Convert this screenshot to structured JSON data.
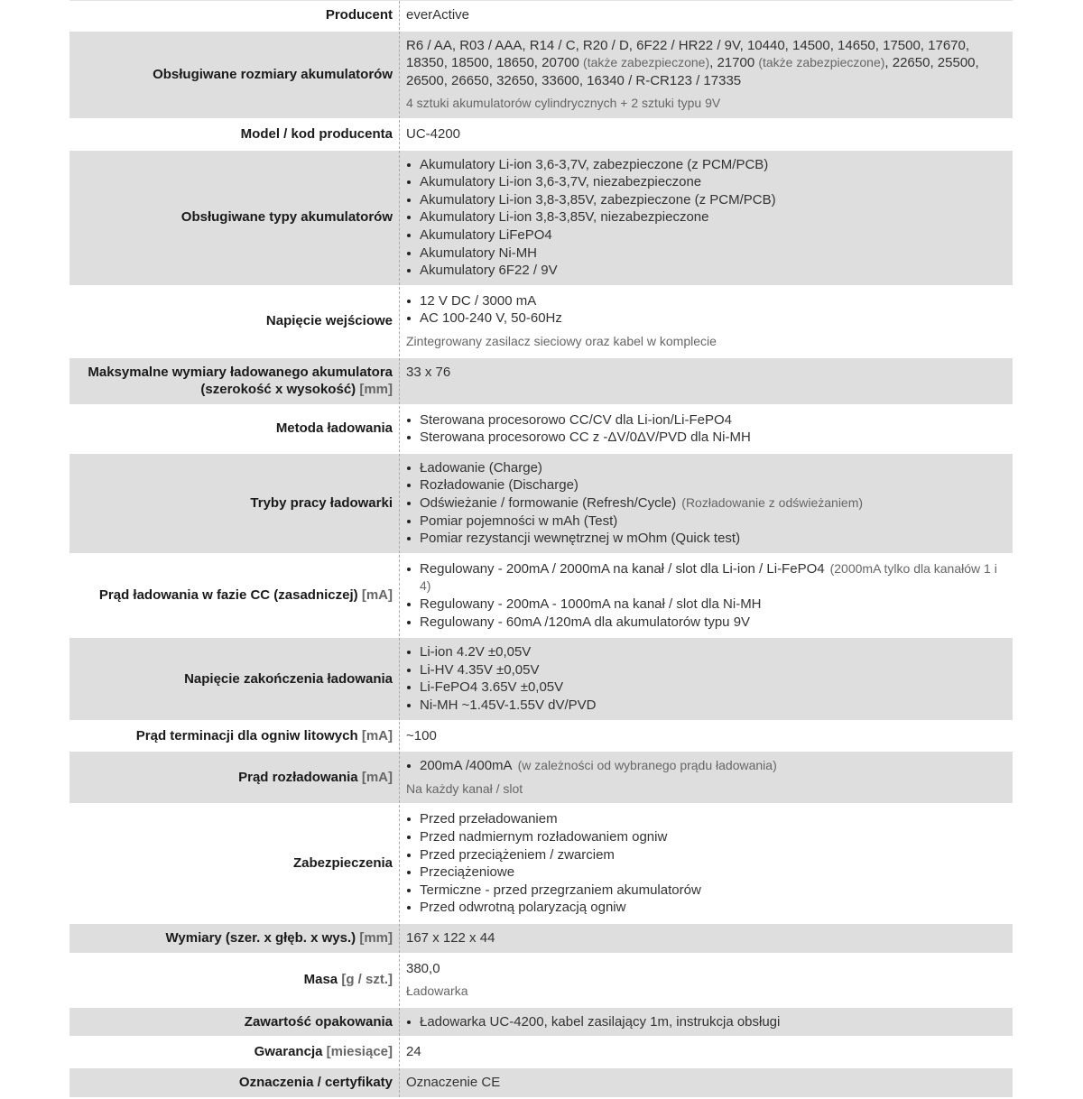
{
  "rows": [
    {
      "label": "Producent",
      "segments": [
        {
          "text": "everActive"
        }
      ]
    },
    {
      "label": "Obsługiwane rozmiary akumulatorów",
      "segments": [
        {
          "text": "R6 / AA, R03 / AAA, R14 / C, R20 / D, 6F22 / HR22 / 9V, 10440, 14500, 14650, 17500, 17670, 18350, 18500, 18650, 20700 "
        },
        {
          "text": " (także zabezpieczone)",
          "muted": true
        },
        {
          "text": ", 21700 "
        },
        {
          "text": " (także zabezpieczone)",
          "muted": true
        },
        {
          "text": ", 22650, 25500, 26500, 26650, 32650, 33600, 16340 / R-CR123 / 17335"
        }
      ],
      "subnote": "4 sztuki akumulatorów cylindrycznych + 2 sztuki typu 9V"
    },
    {
      "label": "Model / kod producenta",
      "segments": [
        {
          "text": "UC-4200"
        }
      ]
    },
    {
      "label": "Obsługiwane typy akumulatorów",
      "items": [
        {
          "text": "Akumulatory Li-ion 3,6-3,7V, zabezpieczone (z PCM/PCB)"
        },
        {
          "text": "Akumulatory Li-ion 3,6-3,7V, niezabezpieczone"
        },
        {
          "text": "Akumulatory Li-ion 3,8-3,85V, zabezpieczone (z PCM/PCB)"
        },
        {
          "text": "Akumulatory Li-ion 3,8-3,85V, niezabezpieczone"
        },
        {
          "text": "Akumulatory LiFePO4"
        },
        {
          "text": "Akumulatory Ni-MH"
        },
        {
          "text": "Akumulatory 6F22 / 9V"
        }
      ]
    },
    {
      "label": "Napięcie wejściowe",
      "items": [
        {
          "text": "12 V DC / 3000 mA"
        },
        {
          "text": "AC 100-240 V, 50-60Hz"
        }
      ],
      "subnote": "Zintegrowany zasilacz sieciowy oraz kabel w komplecie"
    },
    {
      "label": "Maksymalne wymiary ładowanego akumulatora (szerokość x wysokość)",
      "unit": "[mm]",
      "segments": [
        {
          "text": "33 x 76"
        }
      ]
    },
    {
      "label": "Metoda ładowania",
      "items": [
        {
          "text": "Sterowana procesorowo CC/CV dla Li-ion/Li-FePO4"
        },
        {
          "text": "Sterowana procesorowo CC z -ΔV/0ΔV/PVD dla Ni-MH"
        }
      ]
    },
    {
      "label": "Tryby pracy ładowarki",
      "items": [
        {
          "text": "Ładowanie (Charge)"
        },
        {
          "text": "Rozładowanie (Discharge)"
        },
        {
          "text": "Odświeżanie / formowanie (Refresh/Cycle)",
          "note": "(Rozładowanie z odświeżaniem)"
        },
        {
          "text": "Pomiar pojemności w mAh (Test)"
        },
        {
          "text": "Pomiar rezystancji wewnętrznej w mOhm (Quick test)"
        }
      ]
    },
    {
      "label": "Prąd ładowania w fazie CC (zasadniczej)",
      "unit": "[mA]",
      "items": [
        {
          "text": "Regulowany - 200mA / 2000mA na kanał / slot dla Li-ion / Li-FePO4",
          "note": "(2000mA tylko dla kanałów 1 i 4)"
        },
        {
          "text": "Regulowany - 200mA - 1000mA na kanał / slot dla Ni-MH"
        },
        {
          "text": "Regulowany - 60mA /120mA dla akumulatorów typu 9V"
        }
      ]
    },
    {
      "label": "Napięcie zakończenia ładowania",
      "items": [
        {
          "text": "Li-ion 4.2V ±0,05V"
        },
        {
          "text": "Li-HV 4.35V ±0,05V"
        },
        {
          "text": "Li-FePO4 3.65V ±0,05V"
        },
        {
          "text": "Ni-MH ~1.45V-1.55V dV/PVD"
        }
      ]
    },
    {
      "label": "Prąd terminacji dla ogniw litowych",
      "unit": "[mA]",
      "segments": [
        {
          "text": "~100"
        }
      ]
    },
    {
      "label": "Prąd rozładowania",
      "unit": "[mA]",
      "items": [
        {
          "text": "200mA /400mA",
          "note": "(w zależności od wybranego prądu ładowania)"
        }
      ],
      "subnote": "Na każdy kanał / slot"
    },
    {
      "label": "Zabezpieczenia",
      "items": [
        {
          "text": "Przed przeładowaniem"
        },
        {
          "text": "Przed nadmiernym rozładowaniem ogniw"
        },
        {
          "text": "Przed przeciążeniem / zwarciem"
        },
        {
          "text": "Przeciążeniowe"
        },
        {
          "text": "Termiczne - przed przegrzaniem akumulatorów"
        },
        {
          "text": "Przed odwrotną polaryzacją ogniw"
        }
      ]
    },
    {
      "label": "Wymiary (szer. x głęb. x wys.)",
      "unit": "[mm]",
      "segments": [
        {
          "text": "167 x 122 x 44"
        }
      ]
    },
    {
      "label": "Masa",
      "unit": "[g / szt.]",
      "segments": [
        {
          "text": "380,0"
        }
      ],
      "subnote": "Ładowarka"
    },
    {
      "label": "Zawartość opakowania",
      "items": [
        {
          "text": "Ładowarka UC-4200, kabel zasilający 1m, instrukcja obsługi"
        }
      ]
    },
    {
      "label": "Gwarancja",
      "unit": "[miesiące]",
      "segments": [
        {
          "text": "24"
        }
      ]
    },
    {
      "label": "Oznaczenia / certyfikaty",
      "segments": [
        {
          "text": "Oznaczenie CE"
        }
      ]
    }
  ]
}
